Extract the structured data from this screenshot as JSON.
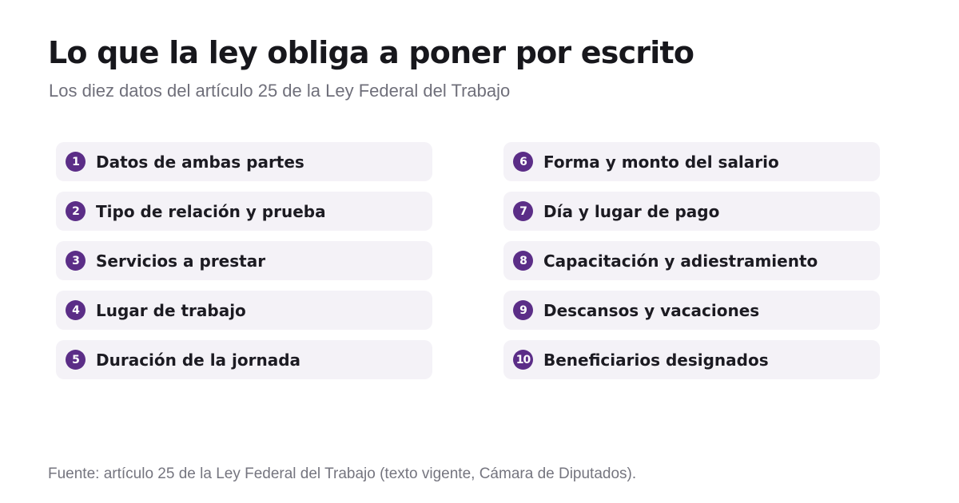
{
  "header": {
    "title": "Lo que la ley obliga a poner por escrito",
    "subtitle": "Los diez datos del artículo 25 de la Ley Federal del Trabajo"
  },
  "items_left": [
    {
      "number": "1",
      "label": "Datos de ambas partes"
    },
    {
      "number": "2",
      "label": "Tipo de relación y prueba"
    },
    {
      "number": "3",
      "label": "Servicios a prestar"
    },
    {
      "number": "4",
      "label": "Lugar de trabajo"
    },
    {
      "number": "5",
      "label": "Duración de la jornada"
    }
  ],
  "items_right": [
    {
      "number": "6",
      "label": "Forma y monto del salario"
    },
    {
      "number": "7",
      "label": "Día y lugar de pago"
    },
    {
      "number": "8",
      "label": "Capacitación y adiestramiento"
    },
    {
      "number": "9",
      "label": "Descansos y vacaciones"
    },
    {
      "number": "10",
      "label": "Beneficiarios designados"
    }
  ],
  "footer": {
    "source": "Fuente: artículo 25 de la Ley Federal del Trabajo (texto vigente, Cámara de Diputados)."
  },
  "colors": {
    "badge": "#5b2d87",
    "item_background": "#f4f2f7",
    "title": "#17171c",
    "muted_text": "#6f6f7a"
  }
}
